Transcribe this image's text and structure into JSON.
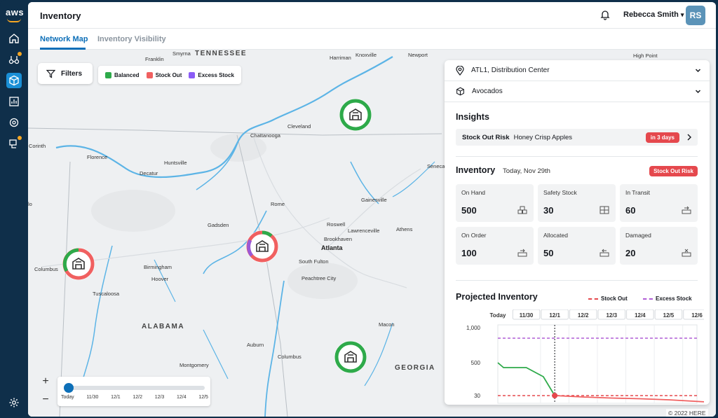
{
  "app": {
    "title": "Inventory",
    "user_name": "Rebecca Smith",
    "user_initials": "RS",
    "brand_logo_text": "aws"
  },
  "tabs": [
    {
      "label": "Network Map",
      "active": true
    },
    {
      "label": "Inventory Visibility",
      "active": false
    }
  ],
  "nav_rail": {
    "items": [
      {
        "name": "home-icon",
        "active": false,
        "badge": false
      },
      {
        "name": "network-icon",
        "active": false,
        "badge": true
      },
      {
        "name": "inventory-icon",
        "active": true,
        "badge": false
      },
      {
        "name": "chart-icon",
        "active": false,
        "badge": false
      },
      {
        "name": "sync-icon",
        "active": false,
        "badge": false
      },
      {
        "name": "delivery-icon",
        "active": false,
        "badge": true
      }
    ],
    "settings_icon": "gear-icon"
  },
  "map": {
    "filters_label": "Filters",
    "legend": [
      {
        "label": "Balanced",
        "color": "#2eaa4a"
      },
      {
        "label": "Stock Out",
        "color": "#f06060"
      },
      {
        "label": "Excess Stock",
        "color": "#8b5cf6"
      }
    ],
    "labels": {
      "tennessee": "TENNESSEE",
      "alabama": "ALABAMA",
      "georgia": "GEORGIA",
      "atlanta": "Atlanta",
      "smyrna": "Smyrna",
      "franklin": "Franklin",
      "harriman": "Harriman",
      "knoxville": "Knoxville",
      "newport": "Newport",
      "high_point": "High Point",
      "cleveland": "Cleveland",
      "chattanooga": "Chattanooga",
      "corinth": "Corinth",
      "florence": "Florence",
      "huntsville": "Huntsville",
      "decatur": "Decatur",
      "gainesville": "Gainesville",
      "rome": "Rome",
      "gadsden": "Gadsden",
      "roswell": "Roswell",
      "lawrenceville": "Lawrenceville",
      "athens": "Athens",
      "brookhaven": "Brookhaven",
      "south_fulton": "South Fulton",
      "peachtree_city": "Peachtree City",
      "columbus_ms": "Columbus",
      "birmingham": "Birmingham",
      "hoover": "Hoover",
      "tuscaloosa": "Tuscaloosa",
      "macon": "Macon",
      "auburn": "Auburn",
      "columbus_ga": "Columbus",
      "montgomery": "Montgomery",
      "seneca": "Seneca",
      "lo": "lo"
    },
    "markers": [
      {
        "name": "warehouse-marker-cleveland",
        "status": "balanced"
      },
      {
        "name": "warehouse-marker-columbus",
        "status": "mixed"
      },
      {
        "name": "warehouse-marker-atlanta",
        "status": "mixed"
      },
      {
        "name": "warehouse-marker-south",
        "status": "balanced"
      }
    ],
    "timeline": [
      "Today",
      "11/30",
      "12/1",
      "12/2",
      "12/3",
      "12/4",
      "12/5"
    ],
    "copyright": "© 2022 HERE"
  },
  "panel": {
    "location": "ATL1, Distribution Center",
    "product": "Avocados",
    "insights_title": "Insights",
    "insight": {
      "label": "Stock Out Risk",
      "item": "Honey Crisp Apples",
      "badge": "in 3 days"
    },
    "inventory_title": "Inventory",
    "inventory_date": "Today, Nov 29th",
    "inventory_badge": "Stock Out Risk",
    "cards": [
      {
        "label": "On Hand",
        "value": "500",
        "icon": "boxes-icon"
      },
      {
        "label": "Safety Stock",
        "value": "30",
        "icon": "stacked-boxes-icon"
      },
      {
        "label": "In Transit",
        "value": "60",
        "icon": "box-arrow-in-icon"
      },
      {
        "label": "On Order",
        "value": "100",
        "icon": "box-arrow-out-icon"
      },
      {
        "label": "Allocated",
        "value": "50",
        "icon": "box-arrow-left-icon"
      },
      {
        "label": "Damaged",
        "value": "20",
        "icon": "box-x-icon"
      }
    ],
    "projected_title": "Projected Inventory",
    "projected_legend": [
      {
        "label": "Stock Out",
        "color": "#e5484d"
      },
      {
        "label": "Excess Stock",
        "color": "#b15ed6"
      }
    ]
  },
  "chart_data": {
    "type": "line",
    "categories": [
      "Today",
      "11/30",
      "12/1",
      "12/2",
      "12/3",
      "12/4",
      "12/5",
      "12/6"
    ],
    "y_ticks": [
      "1,000",
      "500",
      "30"
    ],
    "series": [
      {
        "name": "",
        "color": "#2eaa4a",
        "x": [
          0,
          0.2,
          1,
          1.6,
          2.0
        ],
        "y": [
          500,
          430,
          430,
          300,
          30
        ]
      },
      {
        "name": "",
        "color": "#f06060",
        "x": [
          2.0,
          3,
          4,
          5,
          6,
          7.3
        ],
        "y": [
          30,
          10,
          -5,
          -15,
          -30,
          -60
        ]
      }
    ],
    "thresholds": [
      {
        "name": "Stock Out",
        "value": 30,
        "color": "#e5484d"
      },
      {
        "name": "Excess Stock",
        "value": 850,
        "color": "#b15ed6"
      }
    ],
    "marker_x": 2.0,
    "ylim": [
      -80,
      1000
    ]
  }
}
